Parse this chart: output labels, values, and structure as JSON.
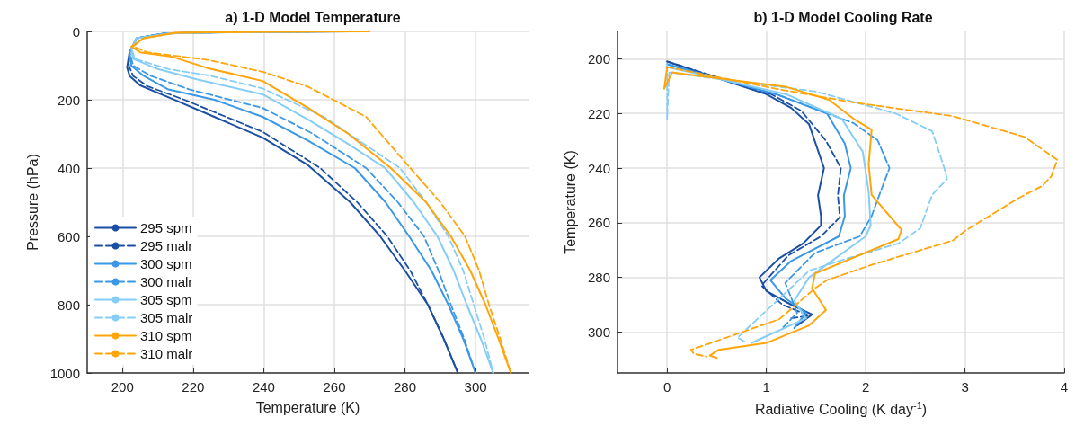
{
  "chart_data": [
    {
      "type": "line",
      "title": "a) 1-D Model Temperature",
      "xlabel": "Temperature (K)",
      "ylabel": "Pressure (hPa)",
      "xlim": [
        190,
        315
      ],
      "xticks": [
        200,
        220,
        240,
        260,
        280,
        300
      ],
      "ylim": [
        1000,
        0
      ],
      "yticks": [
        0,
        200,
        400,
        600,
        800,
        1000
      ],
      "grid": true,
      "legend": "bottom left",
      "series": [
        {
          "name": "295 spm",
          "color": "#1a4fa3",
          "line_style": "solid",
          "x": [
            262,
            230,
            212,
            204,
            202,
            201.3,
            202,
            205,
            214,
            226,
            239.7,
            252.6,
            264.5,
            273,
            280,
            286.5,
            291,
            295
          ],
          "values": [
            0,
            2,
            6,
            20,
            60,
            105,
            130,
            158,
            197,
            250,
            311,
            392,
            500,
            600,
            700,
            800,
            900,
            1000
          ]
        },
        {
          "name": "295 malr",
          "color": "#1a4fa3",
          "line_style": "dashed",
          "x": [
            262,
            230,
            212,
            204,
            202,
            201.8,
            203,
            207,
            217.5,
            239.7,
            256,
            266.5,
            275,
            281.5,
            286.5,
            291,
            295
          ],
          "values": [
            0,
            2,
            6,
            20,
            60,
            100,
            130,
            160,
            200,
            294,
            400,
            500,
            600,
            700,
            800,
            900,
            1000
          ]
        },
        {
          "name": "300 spm",
          "color": "#3a98e6",
          "line_style": "solid",
          "x": [
            264,
            231,
            212,
            204,
            202,
            202.5,
            206,
            213,
            226,
            239.7,
            252.6,
            265.8,
            274.5,
            281.2,
            287.5,
            292.3,
            296.5,
            300
          ],
          "values": [
            0,
            2,
            6,
            20,
            60,
            100,
            130,
            170,
            200,
            250,
            320,
            400,
            500,
            600,
            700,
            800,
            900,
            1000
          ]
        },
        {
          "name": "300 malr",
          "color": "#3a98e6",
          "line_style": "dashed",
          "x": [
            264,
            231,
            212,
            204,
            202,
            203,
            208,
            219,
            239.7,
            254,
            269,
            278,
            285.4,
            289.5,
            293,
            296.8,
            300
          ],
          "values": [
            0,
            2,
            6,
            20,
            60,
            100,
            130,
            170,
            224,
            300,
            400,
            500,
            600,
            700,
            800,
            900,
            1000
          ]
        },
        {
          "name": "305 spm",
          "color": "#85cdf7",
          "line_style": "solid",
          "x": [
            266,
            232,
            213,
            204,
            202.5,
            203,
            210,
            221,
            239.7,
            252.6,
            264,
            274.4,
            282.5,
            289.2,
            293.8,
            297.5,
            301.5,
            305
          ],
          "values": [
            0,
            2,
            6,
            20,
            50,
            80,
            110,
            140,
            184,
            258,
            330,
            400,
            500,
            600,
            700,
            800,
            900,
            1000
          ]
        },
        {
          "name": "305 malr",
          "color": "#85cdf7",
          "line_style": "dashed",
          "x": [
            266,
            232,
            213,
            204,
            202.5,
            203.5,
            213,
            225,
            239.7,
            257,
            278.6,
            286,
            292.3,
            296.5,
            299.5,
            302.5,
            305
          ],
          "values": [
            0,
            2,
            6,
            20,
            50,
            80,
            110,
            130,
            167,
            250,
            400,
            500,
            600,
            700,
            800,
            900,
            1000
          ]
        },
        {
          "name": "310 spm",
          "color": "#ffa50a",
          "line_style": "solid",
          "x": [
            270,
            240,
            215,
            206,
            202.5,
            205,
            214,
            224,
            239.7,
            252.6,
            264,
            276,
            286,
            293,
            298.5,
            302.8,
            306.5,
            310
          ],
          "values": [
            0,
            1,
            4,
            20,
            44,
            61,
            74,
            107,
            145,
            224,
            300,
            400,
            500,
            600,
            700,
            800,
            900,
            1000
          ]
        },
        {
          "name": "310 malr",
          "color": "#ffa50a",
          "line_style": "dashed",
          "x": [
            270,
            240,
            215,
            206,
            203,
            207,
            224,
            239.7,
            252.6,
            269,
            281.5,
            290,
            297,
            301,
            303.8,
            307,
            310
          ],
          "values": [
            0,
            1,
            4,
            20,
            44,
            61,
            83,
            118,
            162,
            250,
            400,
            500,
            600,
            700,
            800,
            900,
            1000
          ]
        }
      ]
    },
    {
      "type": "line",
      "title": "b) 1-D Model Cooling Rate",
      "xlabel": "Radiative Cooling (K day$^{-1}$)",
      "ylabel": "Temperature (K)",
      "xlim": [
        -0.5,
        4
      ],
      "xticks": [
        0,
        1,
        2,
        3,
        4
      ],
      "ylim": [
        315,
        190
      ],
      "yticks": [
        200,
        220,
        240,
        260,
        280,
        300
      ],
      "grid": true,
      "series": [
        {
          "color": "#1a4fa3",
          "line_style": "solid",
          "x": [
            0,
            1.0,
            1.25,
            1.43,
            1.58,
            1.52,
            1.55,
            1.55,
            1.37,
            1.13,
            0.93,
            1.0,
            1.25,
            1.46,
            1.31
          ],
          "values": [
            201,
            213,
            218,
            224,
            240,
            250,
            257.6,
            261,
            267.6,
            273,
            280,
            285,
            290,
            293.6,
            297.6
          ]
        },
        {
          "color": "#1a4fa3",
          "line_style": "dashed",
          "x": [
            0,
            1.05,
            1.35,
            1.6,
            1.75,
            1.72,
            1.74,
            1.55,
            1.22,
            0.95,
            1.16,
            1.43,
            1.25
          ],
          "values": [
            201,
            213,
            219,
            230,
            240,
            250,
            258,
            265,
            272,
            283,
            290,
            294,
            295
          ]
        },
        {
          "color": "#3a98e6",
          "line_style": "solid",
          "x": [
            0,
            1.1,
            1.61,
            1.79,
            1.85,
            1.78,
            1.79,
            1.73,
            1.25,
            1.04,
            1.19,
            1.4,
            1.28
          ],
          "values": [
            202,
            213,
            220,
            231,
            240,
            250,
            257.6,
            265,
            274,
            281,
            287.6,
            293,
            298.6
          ]
        },
        {
          "color": "#3a98e6",
          "line_style": "dashed",
          "x": [
            0,
            1.1,
            1.88,
            2.12,
            2.24,
            2.15,
            2.06,
            1.94,
            1.49,
            1.19,
            1.31,
            1.16
          ],
          "values": [
            202,
            213,
            223.6,
            229.8,
            240,
            248.6,
            257.6,
            265,
            271,
            282,
            293,
            298.6
          ]
        },
        {
          "color": "#85cdf7",
          "line_style": "solid",
          "x": [
            0,
            1.2,
            1.76,
            1.97,
            2.03,
            2.05,
            2.0,
            1.43,
            1.28,
            1.4,
            0.91,
            0.85
          ],
          "values": [
            203,
            213,
            222,
            234,
            248.6,
            261,
            265,
            280,
            288.6,
            295,
            303,
            304
          ]
        },
        {
          "color": "#85cdf7",
          "line_style": "dashed",
          "x": [
            0,
            0,
            0.02,
            1.5,
            2.3,
            2.67,
            2.79,
            2.82,
            2.67,
            2.55,
            2.33,
            1.73,
            1.43,
            0.71,
            0.8
          ],
          "values": [
            202,
            222,
            205,
            212,
            220,
            226.5,
            239.8,
            244,
            249.8,
            262,
            267.6,
            274,
            277.6,
            302,
            304
          ]
        },
        {
          "color": "#ffa50a",
          "line_style": "solid",
          "x": [
            0,
            -0.03,
            0.05,
            1.19,
            1.63,
            1.88,
            2.06,
            2.03,
            2.06,
            2.36,
            2.33,
            1.49,
            1.46,
            1.6,
            1.43,
            1.0,
            0.52,
            0.43,
            0.5
          ],
          "values": [
            203,
            211,
            205,
            210.2,
            215,
            222,
            226,
            238.6,
            249.8,
            262.6,
            266,
            278.6,
            284,
            292,
            297.6,
            304,
            306.5,
            308.6,
            309.5
          ]
        },
        {
          "color": "#ffa50a",
          "line_style": "dashed",
          "x": [
            0,
            1.1,
            1.88,
            2.88,
            3.6,
            3.93,
            3.87,
            3.78,
            3.54,
            3.0,
            2.88,
            2.06,
            1.61,
            1.49,
            1.13,
            0.52,
            0.24,
            0.27,
            0.4
          ],
          "values": [
            203,
            211,
            216,
            221,
            228.6,
            237,
            243,
            246.5,
            251,
            263,
            266.5,
            275.4,
            281,
            284,
            295.3,
            303,
            306.5,
            308,
            309
          ]
        }
      ]
    }
  ]
}
